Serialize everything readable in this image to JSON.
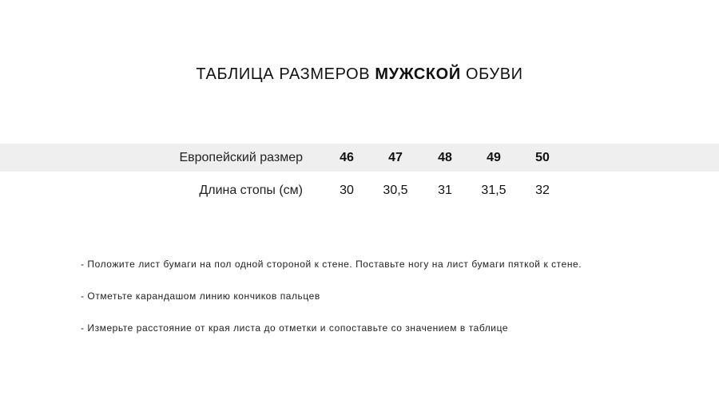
{
  "title": {
    "regular_1": "ТАБЛИЦА РАЗМЕРОВ",
    "bold": "МУЖСКОЙ",
    "regular_2": "ОБУВИ"
  },
  "table": {
    "rows": [
      {
        "label": "Европейский размер",
        "values": [
          "46",
          "47",
          "48",
          "49",
          "50"
        ],
        "highlighted": true
      },
      {
        "label": "Длина стопы (см)",
        "values": [
          "30",
          "30,5",
          "31",
          "31,5",
          "32"
        ],
        "highlighted": false
      }
    ],
    "band_color": "#efefef"
  },
  "instructions": [
    "- Положите лист бумаги на пол одной стороной к стене. Поставьте ногу на лист бумаги пяткой к стене.",
    "- Отметьте карандашом линию кончиков пальцев",
    "- Измерьте расстояние от края листа до отметки и сопоставьте со значением в таблице"
  ]
}
